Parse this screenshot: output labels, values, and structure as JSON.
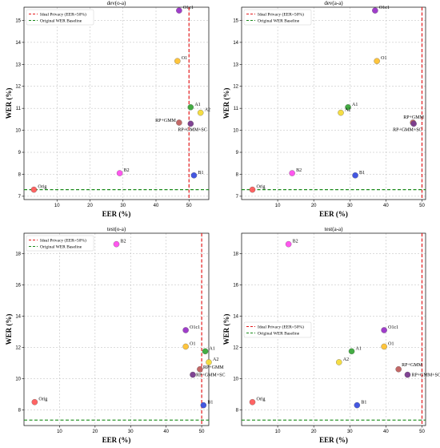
{
  "chart_data": [
    {
      "type": "scatter",
      "title": "dev(o-a)",
      "xlabel": "EER (%)",
      "ylabel": "WER (%)",
      "xlim": [
        0,
        56
      ],
      "ylim": [
        6.85,
        15.6
      ],
      "xticks": [
        10,
        20,
        30,
        40,
        50
      ],
      "yticks": [
        7,
        8,
        9,
        10,
        11,
        12,
        13,
        14,
        15
      ],
      "grid": true,
      "legend_position": "top-left",
      "legend": [
        "Ideal Privacy (EER=50%)",
        "Original WER Baseline"
      ],
      "ideal_eer": 50,
      "baseline_wer": 7.3,
      "points": [
        {
          "label": "Orig",
          "x": 3.0,
          "y": 7.3,
          "color": "#ff5c5c"
        },
        {
          "label": "B1",
          "x": 51.5,
          "y": 7.95,
          "color": "#3b4fe0"
        },
        {
          "label": "B2",
          "x": 29.0,
          "y": 8.05,
          "color": "#ff4fee"
        },
        {
          "label": "O1",
          "x": 46.5,
          "y": 13.15,
          "color": "#ffc233"
        },
        {
          "label": "O1c1",
          "x": 47.0,
          "y": 15.45,
          "color": "#9a33c8"
        },
        {
          "label": "A1",
          "x": 50.5,
          "y": 11.05,
          "color": "#3aa83a"
        },
        {
          "label": "A2",
          "x": 53.5,
          "y": 10.8,
          "color": "#f5dc3a"
        },
        {
          "label": "RP+GMM",
          "x": 47.0,
          "y": 10.35,
          "color": "#c0605f"
        },
        {
          "label": "RP+GMM+SC",
          "x": 50.5,
          "y": 10.3,
          "color": "#7a3a8e"
        }
      ]
    },
    {
      "type": "scatter",
      "title": "dev(a-a)",
      "xlabel": "EER (%)",
      "ylabel": "WER (%)",
      "xlim": [
        0,
        51
      ],
      "ylim": [
        6.85,
        15.6
      ],
      "xticks": [
        10,
        20,
        30,
        40,
        50
      ],
      "yticks": [
        7,
        8,
        9,
        10,
        11,
        12,
        13,
        14,
        15
      ],
      "grid": true,
      "legend_position": "top-left",
      "legend": [
        "Ideal Privacy (EER=50%)",
        "Original WER Baseline"
      ],
      "ideal_eer": 50,
      "baseline_wer": 7.3,
      "points": [
        {
          "label": "Orig",
          "x": 3.0,
          "y": 7.3,
          "color": "#ff5c5c"
        },
        {
          "label": "B1",
          "x": 31.5,
          "y": 7.95,
          "color": "#3b4fe0"
        },
        {
          "label": "B2",
          "x": 14.0,
          "y": 8.05,
          "color": "#ff4fee"
        },
        {
          "label": "O1",
          "x": 37.5,
          "y": 13.15,
          "color": "#ffc233"
        },
        {
          "label": "O1c1",
          "x": 37.0,
          "y": 15.45,
          "color": "#9a33c8"
        },
        {
          "label": "A1",
          "x": 29.5,
          "y": 11.05,
          "color": "#3aa83a"
        },
        {
          "label": "A2",
          "x": 27.5,
          "y": 10.8,
          "color": "#f5dc3a"
        },
        {
          "label": "RP+GMM",
          "x": 47.5,
          "y": 10.35,
          "color": "#c0605f"
        },
        {
          "label": "RP+GMM+SC",
          "x": 47.7,
          "y": 10.3,
          "color": "#7a3a8e"
        }
      ]
    },
    {
      "type": "scatter",
      "title": "test(o-a)",
      "xlabel": "EER (%)",
      "ylabel": "WER (%)",
      "xlim": [
        0,
        52
      ],
      "ylim": [
        7.0,
        19.3
      ],
      "xticks": [
        10,
        20,
        30,
        40,
        50
      ],
      "yticks": [
        8,
        10,
        12,
        14,
        16,
        18
      ],
      "grid": true,
      "legend_position": "top-left",
      "legend": [
        "Ideal Privacy (EER=50%)",
        "Original WER Baseline"
      ],
      "ideal_eer": 50,
      "baseline_wer": 7.35,
      "points": [
        {
          "label": "Orig",
          "x": 3.0,
          "y": 8.5,
          "color": "#ff5c5c"
        },
        {
          "label": "B1",
          "x": 50.5,
          "y": 8.3,
          "color": "#3b4fe0"
        },
        {
          "label": "B2",
          "x": 26.0,
          "y": 18.6,
          "color": "#ff4fee"
        },
        {
          "label": "O1",
          "x": 45.5,
          "y": 12.05,
          "color": "#ffc233"
        },
        {
          "label": "O1c1",
          "x": 45.5,
          "y": 13.1,
          "color": "#9a33c8"
        },
        {
          "label": "A1",
          "x": 51.0,
          "y": 11.75,
          "color": "#3aa83a"
        },
        {
          "label": "A2",
          "x": 52.0,
          "y": 11.05,
          "color": "#f5dc3a"
        },
        {
          "label": "RP+GMM",
          "x": 49.5,
          "y": 10.6,
          "color": "#c0605f"
        },
        {
          "label": "RP+GMM+SC",
          "x": 47.5,
          "y": 10.25,
          "color": "#7a3a8e"
        }
      ]
    },
    {
      "type": "scatter",
      "title": "test(a-a)",
      "xlabel": "EER (%)",
      "ylabel": "WER (%)",
      "xlim": [
        0,
        51
      ],
      "ylim": [
        7.0,
        19.3
      ],
      "xticks": [
        10,
        20,
        30,
        40,
        50
      ],
      "yticks": [
        8,
        10,
        12,
        14,
        16,
        18
      ],
      "grid": true,
      "legend_position": "center-left",
      "legend": [
        "Ideal Privacy (EER=50%)",
        "Original WER Baseline"
      ],
      "ideal_eer": 50,
      "baseline_wer": 7.35,
      "points": [
        {
          "label": "Orig",
          "x": 3.0,
          "y": 8.5,
          "color": "#ff5c5c"
        },
        {
          "label": "B1",
          "x": 32.0,
          "y": 8.3,
          "color": "#3b4fe0"
        },
        {
          "label": "B2",
          "x": 13.0,
          "y": 18.6,
          "color": "#ff4fee"
        },
        {
          "label": "O1",
          "x": 39.5,
          "y": 12.05,
          "color": "#ffc233"
        },
        {
          "label": "O1c1",
          "x": 39.5,
          "y": 13.1,
          "color": "#9a33c8"
        },
        {
          "label": "A1",
          "x": 30.5,
          "y": 11.75,
          "color": "#3aa83a"
        },
        {
          "label": "A2",
          "x": 27.0,
          "y": 11.05,
          "color": "#f5dc3a"
        },
        {
          "label": "RP+GMM",
          "x": 43.5,
          "y": 10.6,
          "color": "#c0605f"
        },
        {
          "label": "RP+GMM+SC",
          "x": 46.0,
          "y": 10.25,
          "color": "#7a3a8e"
        }
      ]
    }
  ]
}
